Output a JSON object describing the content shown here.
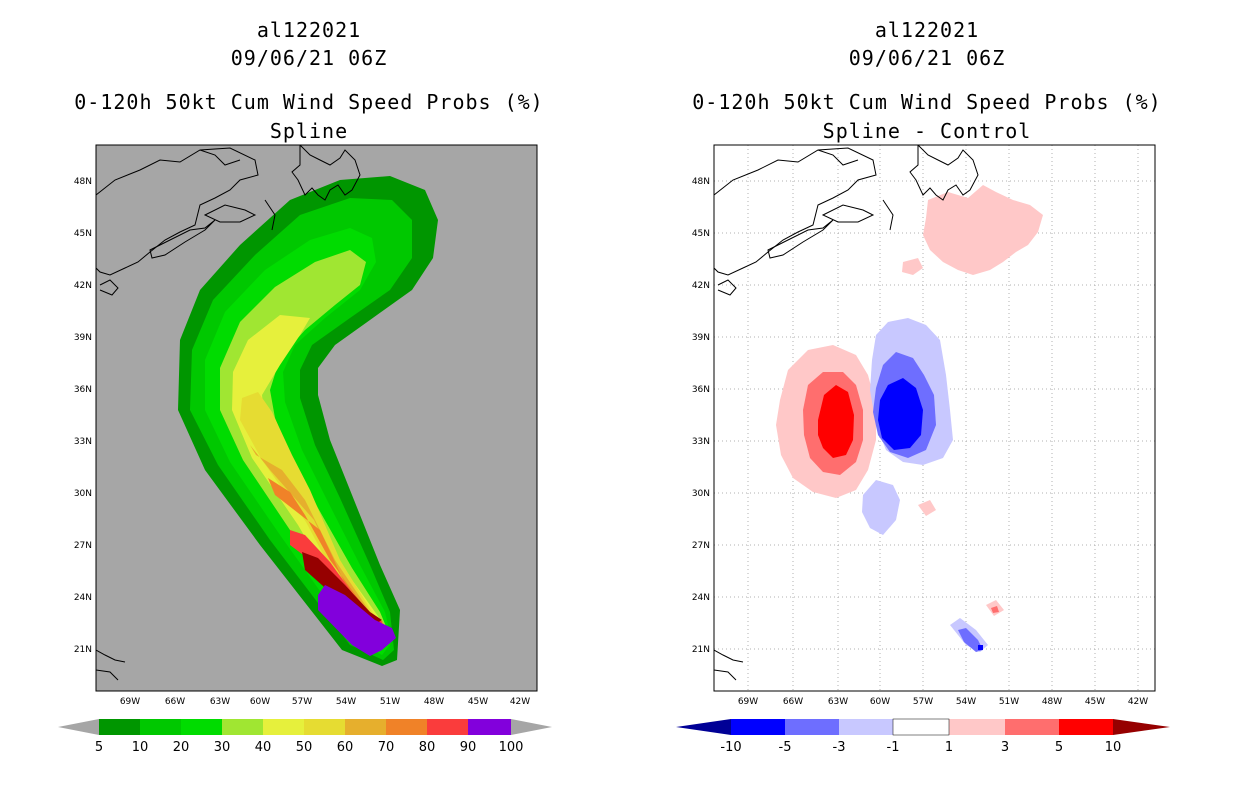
{
  "left": {
    "storm_id": "al122021",
    "datetime": "09/06/21 06Z",
    "product": "0-120h 50kt Cum Wind Speed Probs (%)",
    "subtitle": "Spline",
    "lat_labels": [
      "48N",
      "45N",
      "42N",
      "39N",
      "36N",
      "33N",
      "30N",
      "27N",
      "24N",
      "21N"
    ],
    "lon_labels": [
      "69W",
      "66W",
      "63W",
      "60W",
      "57W",
      "54W",
      "51W",
      "48W",
      "45W",
      "42W"
    ],
    "colorbar": {
      "labels": [
        "5",
        "10",
        "20",
        "30",
        "40",
        "50",
        "60",
        "70",
        "80",
        "90",
        "100"
      ],
      "colors": [
        "#009600",
        "#00c800",
        "#00dc00",
        "#a0e632",
        "#e6f03c",
        "#e6dc32",
        "#e6af2d",
        "#f08228",
        "#fa3c3c",
        "#960000",
        "#8200dc"
      ],
      "arrow_color": "#a6a6a6"
    },
    "background": "#a6a6a6"
  },
  "right": {
    "storm_id": "al122021",
    "datetime": "09/06/21 06Z",
    "product": "0-120h 50kt Cum Wind Speed Probs (%)",
    "subtitle": "Spline - Control",
    "lat_labels": [
      "48N",
      "45N",
      "42N",
      "39N",
      "36N",
      "33N",
      "30N",
      "27N",
      "24N",
      "21N"
    ],
    "lon_labels": [
      "69W",
      "66W",
      "63W",
      "60W",
      "57W",
      "54W",
      "51W",
      "48W",
      "45W",
      "42W"
    ],
    "colorbar": {
      "labels": [
        "-10",
        "-5",
        "-3",
        "-1",
        "1",
        "3",
        "5",
        "10"
      ],
      "colors": [
        "#0000ff",
        "#6e6eff",
        "#c8c8ff",
        "#ffffff",
        "#ffc8c8",
        "#ff6e6e",
        "#ff0000"
      ],
      "low_arrow_color": "#000096",
      "high_arrow_color": "#960000"
    },
    "background": "#ffffff"
  }
}
